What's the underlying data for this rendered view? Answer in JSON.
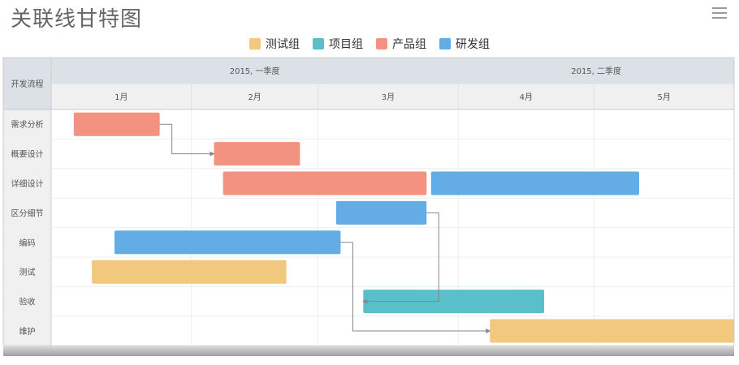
{
  "title": "关联线甘特图",
  "menu_icon": "hamburger-menu-icon",
  "legend": [
    {
      "name": "测试组",
      "color": "#F2C77E"
    },
    {
      "name": "项目组",
      "color": "#5BBFCA"
    },
    {
      "name": "产品组",
      "color": "#F39281"
    },
    {
      "name": "研发组",
      "color": "#63ACE5"
    }
  ],
  "chart_data": {
    "type": "gantt",
    "row_header_label": "开发流程",
    "quarters": [
      {
        "label": "2015, 一季度",
        "months": 3
      },
      {
        "label": "2015, 二季度",
        "months": 2
      }
    ],
    "months": [
      "1月",
      "2月",
      "3月",
      "4月",
      "5月"
    ],
    "month_days": [
      31,
      28,
      31,
      30,
      31
    ],
    "start_date": "2015-01-01",
    "end_date": "2015-05-31",
    "rows": [
      "需求分析",
      "概要设计",
      "详细设计",
      "区分细节",
      "编码",
      "测试",
      "验收",
      "维护"
    ],
    "tasks": [
      {
        "row": 0,
        "start": "2015-01-06",
        "end": "2015-01-24",
        "group": "产品组"
      },
      {
        "row": 1,
        "start": "2015-02-06",
        "end": "2015-02-24",
        "group": "产品组"
      },
      {
        "row": 2,
        "start": "2015-02-08",
        "end": "2015-03-24",
        "group": "产品组"
      },
      {
        "row": 2,
        "start": "2015-03-26",
        "end": "2015-05-10",
        "group": "研发组"
      },
      {
        "row": 3,
        "start": "2015-03-05",
        "end": "2015-03-24",
        "group": "研发组"
      },
      {
        "row": 4,
        "start": "2015-01-15",
        "end": "2015-03-05",
        "group": "研发组"
      },
      {
        "row": 5,
        "start": "2015-01-10",
        "end": "2015-02-21",
        "group": "测试组"
      },
      {
        "row": 6,
        "start": "2015-03-11",
        "end": "2015-04-19",
        "group": "项目组"
      },
      {
        "row": 7,
        "start": "2015-04-08",
        "end": "2015-05-31",
        "group": "测试组"
      }
    ],
    "links": [
      {
        "from": 0,
        "to": 1
      },
      {
        "from": 5,
        "to": 8
      },
      {
        "from": 4,
        "to": 7
      }
    ]
  }
}
